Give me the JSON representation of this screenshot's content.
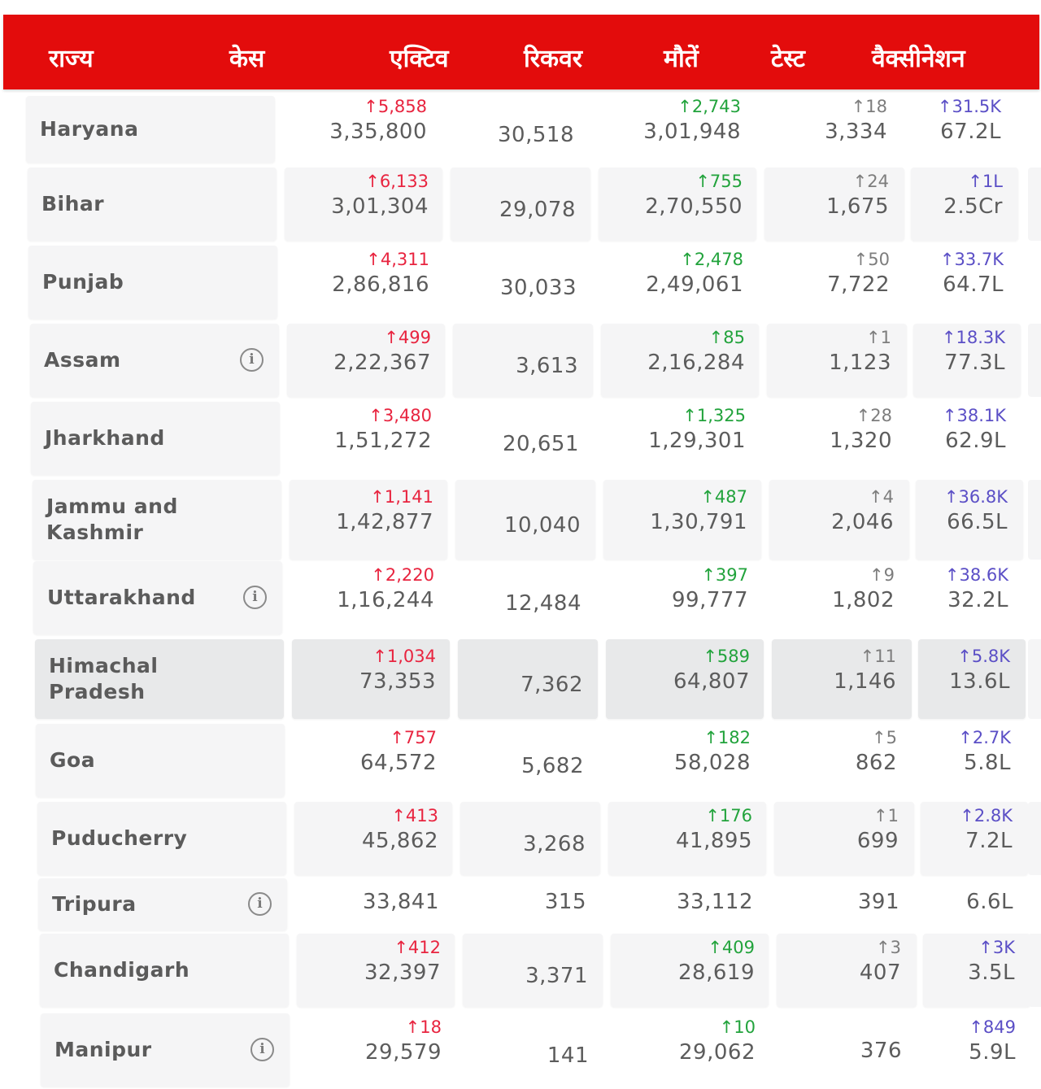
{
  "header": {
    "columns": [
      "राज्य",
      "केस",
      "एक्टिव",
      "रिकवर",
      "मौतें",
      "टेस्ट",
      "वैक्सीनेशन"
    ]
  },
  "rows": [
    {
      "state": "Haryana",
      "info": false,
      "active_delta": "↑5,858",
      "active": "3,35,800",
      "recovered": "30,518",
      "deaths_delta": "↑2,743",
      "deaths": "3,01,948",
      "tests_delta": "↑18",
      "tests": "3,334",
      "vacc_delta": "↑31.5K",
      "vacc": "67.2L"
    },
    {
      "state": "Bihar",
      "info": false,
      "active_delta": "↑6,133",
      "active": "3,01,304",
      "recovered": "29,078",
      "deaths_delta": "↑755",
      "deaths": "2,70,550",
      "tests_delta": "↑24",
      "tests": "1,675",
      "vacc_delta": "↑1L",
      "vacc": "2.5Cr"
    },
    {
      "state": "Punjab",
      "info": false,
      "active_delta": "↑4,311",
      "active": "2,86,816",
      "recovered": "30,033",
      "deaths_delta": "↑2,478",
      "deaths": "2,49,061",
      "tests_delta": "↑50",
      "tests": "7,722",
      "vacc_delta": "↑33.7K",
      "vacc": "64.7L"
    },
    {
      "state": "Assam",
      "info": true,
      "active_delta": "↑499",
      "active": "2,22,367",
      "recovered": "3,613",
      "deaths_delta": "↑85",
      "deaths": "2,16,284",
      "tests_delta": "↑1",
      "tests": "1,123",
      "vacc_delta": "↑18.3K",
      "vacc": "77.3L"
    },
    {
      "state": "Jharkhand",
      "info": false,
      "active_delta": "↑3,480",
      "active": "1,51,272",
      "recovered": "20,651",
      "deaths_delta": "↑1,325",
      "deaths": "1,29,301",
      "tests_delta": "↑28",
      "tests": "1,320",
      "vacc_delta": "↑38.1K",
      "vacc": "62.9L"
    },
    {
      "state": "Jammu and Kashmir",
      "info": false,
      "active_delta": "↑1,141",
      "active": "1,42,877",
      "recovered": "10,040",
      "deaths_delta": "↑487",
      "deaths": "1,30,791",
      "tests_delta": "↑4",
      "tests": "2,046",
      "vacc_delta": "↑36.8K",
      "vacc": "66.5L"
    },
    {
      "state": "Uttarakhand",
      "info": true,
      "active_delta": "↑2,220",
      "active": "1,16,244",
      "recovered": "12,484",
      "deaths_delta": "↑397",
      "deaths": "99,777",
      "tests_delta": "↑9",
      "tests": "1,802",
      "vacc_delta": "↑38.6K",
      "vacc": "32.2L"
    },
    {
      "state": "Himachal Pradesh",
      "info": false,
      "active_delta": "↑1,034",
      "active": "73,353",
      "recovered": "7,362",
      "deaths_delta": "↑589",
      "deaths": "64,807",
      "tests_delta": "↑11",
      "tests": "1,146",
      "vacc_delta": "↑5.8K",
      "vacc": "13.6L"
    },
    {
      "state": "Goa",
      "info": false,
      "active_delta": "↑757",
      "active": "64,572",
      "recovered": "5,682",
      "deaths_delta": "↑182",
      "deaths": "58,028",
      "tests_delta": "↑5",
      "tests": "862",
      "vacc_delta": "↑2.7K",
      "vacc": "5.8L"
    },
    {
      "state": "Puducherry",
      "info": false,
      "active_delta": "↑413",
      "active": "45,862",
      "recovered": "3,268",
      "deaths_delta": "↑176",
      "deaths": "41,895",
      "tests_delta": "↑1",
      "tests": "699",
      "vacc_delta": "↑2.8K",
      "vacc": "7.2L"
    },
    {
      "state": "Tripura",
      "info": true,
      "active_delta": "",
      "active": "33,841",
      "recovered": "315",
      "deaths_delta": "",
      "deaths": "33,112",
      "tests_delta": "",
      "tests": "391",
      "vacc_delta": "",
      "vacc": "6.6L"
    },
    {
      "state": "Chandigarh",
      "info": false,
      "active_delta": "↑412",
      "active": "32,397",
      "recovered": "3,371",
      "deaths_delta": "↑409",
      "deaths": "28,619",
      "tests_delta": "↑3",
      "tests": "407",
      "vacc_delta": "↑3K",
      "vacc": "3.5L"
    },
    {
      "state": "Manipur",
      "info": true,
      "active_delta": "↑18",
      "active": "29,579",
      "recovered": "141",
      "deaths_delta": "↑10",
      "deaths": "29,062",
      "tests_delta": "",
      "tests": "376",
      "vacc_delta": "↑849",
      "vacc": "5.9L"
    }
  ]
}
